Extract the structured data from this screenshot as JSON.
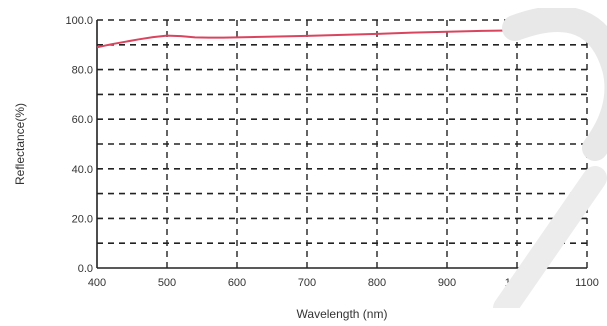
{
  "chart_data": {
    "type": "line",
    "title": "",
    "xlabel": "Wavelength (nm)",
    "ylabel": "Reflectance(%)",
    "xlim": [
      400,
      1100
    ],
    "ylim": [
      0,
      100
    ],
    "xticks": [
      400,
      500,
      600,
      700,
      800,
      900,
      1000,
      1100
    ],
    "xtick_labels": [
      "400",
      "500",
      "600",
      "700",
      "800",
      "900",
      "1000",
      "1100"
    ],
    "yticks": [
      0,
      20,
      40,
      60,
      80,
      100
    ],
    "ytick_labels": [
      "0.0",
      "20.0",
      "40.0",
      "60.0",
      "80.0",
      "100.0"
    ],
    "grid": true,
    "grid_style": "dashed",
    "series": [
      {
        "color": "#d9455f",
        "x": [
          400,
          420,
          440,
          460,
          480,
          500,
          520,
          540,
          560,
          580,
          600,
          650,
          700,
          750,
          800,
          850,
          900,
          950,
          1000,
          1050,
          1100
        ],
        "y": [
          89,
          90.2,
          91.2,
          92.2,
          93.1,
          93.7,
          93.5,
          93.0,
          92.9,
          92.9,
          93.0,
          93.3,
          93.6,
          94.0,
          94.4,
          94.9,
          95.3,
          95.6,
          95.8,
          95.7,
          95.6
        ]
      }
    ]
  }
}
